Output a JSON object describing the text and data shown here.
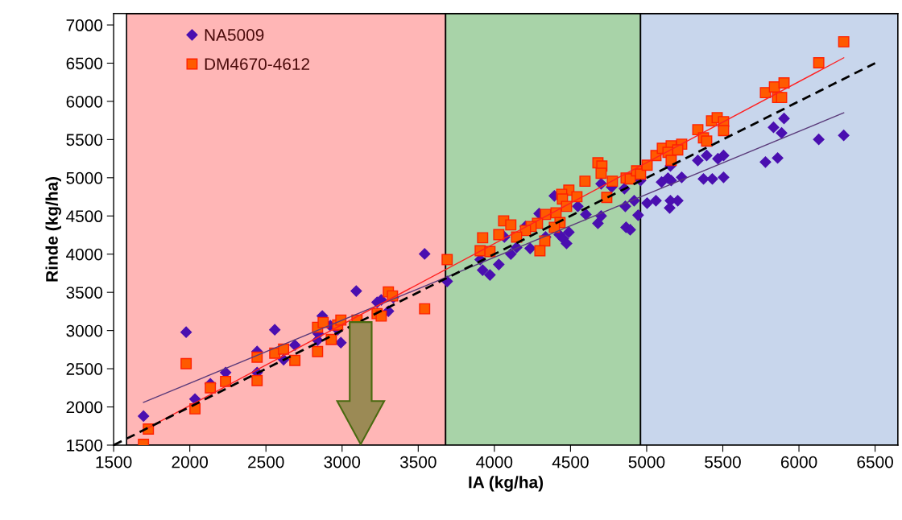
{
  "chart_data": {
    "type": "scatter",
    "xlabel": "IA (kg/ha)",
    "ylabel": "Rinde (kg/ha)",
    "xlim": [
      1500,
      6650
    ],
    "xticks": [
      1500,
      2000,
      2500,
      3000,
      3500,
      4000,
      4500,
      5000,
      5500,
      6000,
      6500
    ],
    "ylim": [
      1500,
      7150
    ],
    "yticks": [
      1500,
      2000,
      2500,
      3000,
      3500,
      4000,
      4500,
      5000,
      5500,
      6000,
      6500,
      7000
    ],
    "grid": false,
    "legend": "top left",
    "bands": [
      {
        "axis": "x",
        "from": 1585,
        "to": 3680,
        "color": "#ffb6b6"
      },
      {
        "axis": "x",
        "from": 3680,
        "to": 4960,
        "color": "#a8d3a8"
      },
      {
        "axis": "x",
        "from": 4960,
        "to": 6650,
        "color": "#c8d6ec"
      }
    ],
    "series": [
      {
        "name": "NA5009",
        "marker": "diamond",
        "color": "#4a0fb0",
        "x": [
          1696,
          1976,
          2034,
          2135,
          2235,
          2442,
          2442,
          2558,
          2616,
          2690,
          2839,
          2870,
          2844,
          2923,
          2971,
          2992,
          3093,
          3230,
          3257,
          3304,
          3336,
          3542,
          3690,
          3907,
          3923,
          3971,
          4029,
          4066,
          4108,
          4146,
          4235,
          4204,
          4294,
          4336,
          4394,
          4426,
          4452,
          4474,
          4489,
          4548,
          4601,
          4680,
          4701,
          4701,
          4770,
          4854,
          4860,
          4865,
          4892,
          4918,
          4944,
          4960,
          5003,
          5061,
          5098,
          5140,
          5161,
          5156,
          5204,
          5151,
          5230,
          5156,
          5336,
          5373,
          5394,
          5431,
          5468,
          5505,
          5505,
          5780,
          5860,
          5833,
          5902,
          5886,
          6130,
          6294
        ],
        "values": [
          1880,
          2978,
          2102,
          2303,
          2450,
          2725,
          2450,
          3010,
          2619,
          2809,
          2873,
          3190,
          2957,
          3063,
          3010,
          2841,
          3517,
          3369,
          3401,
          3253,
          3432,
          4003,
          3644,
          3929,
          3791,
          3728,
          3865,
          4224,
          4002,
          4087,
          4076,
          4362,
          4531,
          4224,
          4763,
          4256,
          4203,
          4140,
          4288,
          4626,
          4520,
          4404,
          4499,
          4921,
          4879,
          4858,
          4626,
          4351,
          4319,
          4700,
          4510,
          4964,
          4668,
          4700,
          4943,
          4995,
          4964,
          4700,
          4700,
          4605,
          5006,
          5154,
          5227,
          4985,
          5291,
          4985,
          5249,
          5291,
          5006,
          5206,
          5259,
          5660,
          5776,
          5586,
          5502,
          5555
        ]
      },
      {
        "name": "DM4670-4612",
        "marker": "square",
        "color": "#ff5a00",
        "x": [
          1696,
          1728,
          1976,
          2034,
          2135,
          2235,
          2442,
          2442,
          2558,
          2616,
          2690,
          2839,
          2839,
          2876,
          2929,
          2971,
          2992,
          3098,
          3230,
          3257,
          3304,
          3331,
          3542,
          3690,
          4680,
          4706,
          4701,
          4595,
          4775,
          4865,
          4892,
          4934,
          4738,
          4489,
          4442,
          4447,
          4542,
          4474,
          4405,
          4336,
          4283,
          4241,
          4204,
          4431,
          4394,
          4061,
          4108,
          4029,
          4146,
          3923,
          3907,
          3971,
          4331,
          4299,
          4960,
          5003,
          5061,
          5103,
          5161,
          5230,
          5140,
          5204,
          5161,
          5336,
          5373,
          5394,
          5426,
          5463,
          5505,
          5505,
          5780,
          5839,
          5902,
          5860,
          5886,
          6130,
          6294
        ],
        "values": [
          1510,
          1711,
          2566,
          1975,
          2250,
          2334,
          2651,
          2345,
          2704,
          2757,
          2609,
          2725,
          3042,
          3105,
          2883,
          3073,
          3137,
          3137,
          3221,
          3190,
          3506,
          3453,
          3285,
          3929,
          5196,
          5154,
          5059,
          4955,
          4955,
          4997,
          4985,
          5090,
          4742,
          4837,
          4784,
          4721,
          4752,
          4626,
          4541,
          4520,
          4404,
          4362,
          4309,
          4414,
          4351,
          4436,
          4383,
          4256,
          4224,
          4214,
          4045,
          4034,
          4172,
          4045,
          5048,
          5164,
          5291,
          5386,
          5418,
          5439,
          5333,
          5365,
          5227,
          5629,
          5523,
          5481,
          5745,
          5787,
          5734,
          5618,
          6114,
          6189,
          6241,
          6051,
          6051,
          6505,
          6780
        ]
      },
      {
        "type": "line",
        "color": "#5a3a7a",
        "line_style": "solid",
        "x": [
          1696,
          6294
        ],
        "values": [
          2060,
          5850
        ]
      },
      {
        "type": "line",
        "color": "#ff2020",
        "line_style": "solid",
        "x": [
          1700,
          6294
        ],
        "values": [
          1700,
          6570
        ]
      },
      {
        "type": "line",
        "color": "#000000",
        "line_style": "dashed",
        "x": [
          1500,
          6500
        ],
        "values": [
          1500,
          6500
        ]
      }
    ]
  }
}
